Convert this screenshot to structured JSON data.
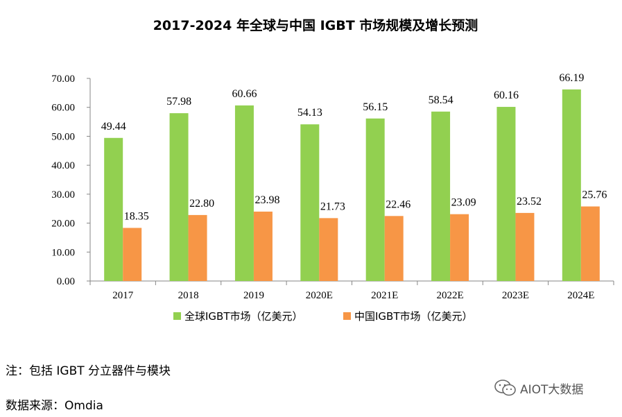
{
  "chart_data": {
    "type": "bar",
    "title": "2017-2024 年全球与中国 IGBT 市场规模及增长预测",
    "categories": [
      "2017",
      "2018",
      "2019",
      "2020E",
      "2021E",
      "2022E",
      "2023E",
      "2024E"
    ],
    "series": [
      {
        "name": "全球IGBT市场（亿美元）",
        "color": "#92d050",
        "values": [
          49.44,
          57.98,
          60.66,
          54.13,
          56.15,
          58.54,
          60.16,
          66.19
        ],
        "labels": [
          "49.44",
          "57.98",
          "60.66",
          "54.13",
          "56.15",
          "58.54",
          "60.16",
          "66.19"
        ]
      },
      {
        "name": "中国IGBT市场（亿美元）",
        "color": "#f79646",
        "values": [
          18.35,
          22.8,
          23.98,
          21.73,
          22.46,
          23.09,
          23.52,
          25.76
        ],
        "labels": [
          "18.35",
          "22.80",
          "23.98",
          "21.73",
          "22.46",
          "23.09",
          "23.52",
          "25.76"
        ]
      }
    ],
    "ylim": [
      0,
      70
    ],
    "yticks": [
      "0.00",
      "10.00",
      "20.00",
      "30.00",
      "40.00",
      "50.00",
      "60.00",
      "70.00"
    ],
    "grid": false,
    "legend": "bottom"
  },
  "notes": {
    "note": "注：包括 IGBT 分立器件与模块",
    "source": "数据来源：Omdia"
  },
  "watermark": {
    "text": "AIOT大数据",
    "icon": "wechat-icon"
  }
}
